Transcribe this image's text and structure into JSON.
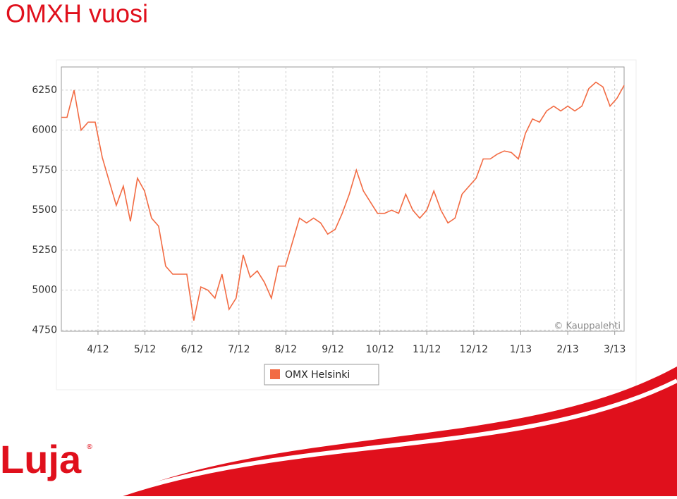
{
  "chart_data": {
    "type": "line",
    "title": "OMXH vuosi",
    "credit": "© Kauppalehti",
    "logo": "Luja",
    "logo_mark": "®",
    "x": [
      3.22,
      3.34,
      3.49,
      3.64,
      3.79,
      3.94,
      4.09,
      4.24,
      4.39,
      4.54,
      4.69,
      4.84,
      4.99,
      5.14,
      5.29,
      5.44,
      5.59,
      5.74,
      5.89,
      6.04,
      6.19,
      6.34,
      6.49,
      6.64,
      6.79,
      6.94,
      7.09,
      7.24,
      7.39,
      7.54,
      7.69,
      7.84,
      7.99,
      8.14,
      8.29,
      8.44,
      8.59,
      8.74,
      8.89,
      9.05,
      9.2,
      9.35,
      9.5,
      9.65,
      9.8,
      9.95,
      10.1,
      10.25,
      10.4,
      10.55,
      10.7,
      10.85,
      11.0,
      11.15,
      11.3,
      11.45,
      11.6,
      11.75,
      11.9,
      12.05,
      12.2,
      12.35,
      12.5,
      12.65,
      12.8,
      12.95,
      13.1,
      13.25,
      13.4,
      13.55,
      13.7,
      13.85,
      14.0,
      14.15,
      14.3,
      14.45,
      14.6,
      14.75,
      14.9,
      15.05,
      15.2
    ],
    "series": [
      {
        "name": "OMX Helsinki",
        "color": "#f26b43",
        "values": [
          6080,
          6080,
          6250,
          6000,
          6050,
          6050,
          5830,
          5680,
          5530,
          5650,
          5430,
          5700,
          5620,
          5450,
          5400,
          5150,
          5100,
          5100,
          5100,
          4810,
          5020,
          5000,
          4950,
          5100,
          4880,
          4950,
          5220,
          5080,
          5120,
          5050,
          4950,
          5150,
          5150,
          5300,
          5450,
          5420,
          5450,
          5420,
          5350,
          5380,
          5480,
          5600,
          5750,
          5620,
          5550,
          5480,
          5480,
          5500,
          5480,
          5600,
          5500,
          5450,
          5500,
          5620,
          5500,
          5420,
          5450,
          5600,
          5650,
          5700,
          5820,
          5820,
          5850,
          5870,
          5860,
          5820,
          5980,
          6070,
          6050,
          6120,
          6150,
          6120,
          6150,
          6120,
          6150,
          6260,
          6300,
          6270,
          6150,
          6200,
          6280
        ]
      }
    ],
    "xlim": [
      3.22,
      15.2
    ],
    "xticks": [
      {
        "value": 4,
        "label": "4/12"
      },
      {
        "value": 5,
        "label": "5/12"
      },
      {
        "value": 6,
        "label": "6/12"
      },
      {
        "value": 7,
        "label": "7/12"
      },
      {
        "value": 8,
        "label": "8/12"
      },
      {
        "value": 9,
        "label": "9/12"
      },
      {
        "value": 10,
        "label": "10/12"
      },
      {
        "value": 11,
        "label": "11/12"
      },
      {
        "value": 12,
        "label": "12/12"
      },
      {
        "value": 13,
        "label": "1/13"
      },
      {
        "value": 14,
        "label": "2/13"
      },
      {
        "value": 15,
        "label": "3/13"
      }
    ],
    "ylim": [
      4743,
      6395
    ],
    "yticks": [
      4750,
      5000,
      5250,
      5500,
      5750,
      6000,
      6250
    ],
    "grid": true
  }
}
